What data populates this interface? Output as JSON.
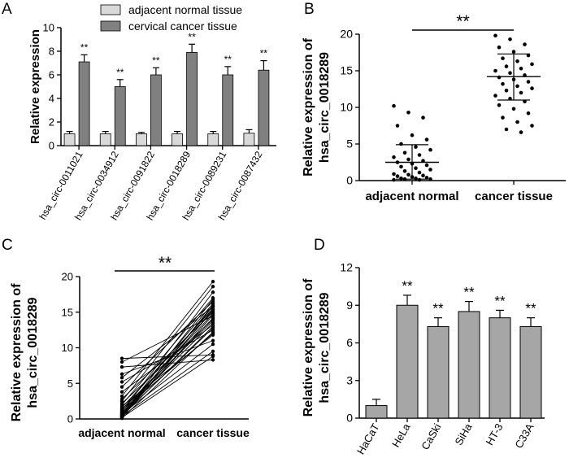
{
  "chart_data": [
    {
      "panel": "A",
      "type": "bar",
      "ylabel": "Relative expression",
      "ylim": [
        0,
        10
      ],
      "yticks": [
        0,
        2,
        4,
        6,
        8,
        10
      ],
      "categories": [
        "hsa_circ-0011021",
        "hsa_circ-0034912",
        "hsa_circ-0091822",
        "hsa_circ-0018289",
        "hsa_circ-0089231",
        "hsa_circ-0087432"
      ],
      "series": [
        {
          "name": "adjacent normal tissue",
          "color": "#d9d9d9",
          "values": [
            1.0,
            1.0,
            1.0,
            1.0,
            1.0,
            1.05
          ],
          "errors": [
            0.2,
            0.2,
            0.12,
            0.2,
            0.2,
            0.3
          ]
        },
        {
          "name": "cervical cancer tissue",
          "color": "#808080",
          "values": [
            7.1,
            5.0,
            6.0,
            7.9,
            6.0,
            6.4
          ],
          "errors": [
            0.6,
            0.6,
            0.6,
            0.7,
            0.7,
            0.8
          ]
        }
      ],
      "annotations": [
        "**",
        "**",
        "**",
        "**",
        "**",
        "**"
      ]
    },
    {
      "panel": "B",
      "type": "scatter",
      "ylabel_lines": [
        "Relative expression of",
        "hsa_circ_0018289"
      ],
      "ylim": [
        0,
        20
      ],
      "yticks": [
        0,
        5,
        10,
        15,
        20
      ],
      "categories": [
        "adjacent normal",
        "cancer tissue"
      ],
      "significance": "**",
      "groups": [
        {
          "name": "adjacent normal",
          "mean": 2.5,
          "sd_upper": 4.9,
          "sd_lower": 0.2,
          "values": [
            10.2,
            9.3,
            8.6,
            7.5,
            6.2,
            5.6,
            5.0,
            4.6,
            4.2,
            3.8,
            3.5,
            3.2,
            2.9,
            2.7,
            2.5,
            2.3,
            2.1,
            1.9,
            1.7,
            1.5,
            1.3,
            1.1,
            0.9,
            0.8,
            0.7,
            0.6,
            0.5,
            0.4,
            0.3,
            0.3,
            0.2,
            0.2,
            0.1,
            0.1
          ]
        },
        {
          "name": "cancer tissue",
          "mean": 14.2,
          "sd_upper": 17.3,
          "sd_lower": 11.0,
          "values": [
            19.8,
            19.3,
            18.6,
            18.2,
            17.6,
            17.1,
            16.7,
            16.3,
            15.9,
            15.6,
            15.3,
            15.0,
            14.7,
            14.4,
            14.1,
            13.8,
            13.5,
            13.2,
            12.9,
            12.6,
            12.3,
            12.0,
            11.6,
            11.2,
            10.8,
            10.3,
            9.8,
            9.2,
            8.6,
            8.0,
            7.5,
            7.0,
            6.6
          ]
        }
      ]
    },
    {
      "panel": "C",
      "type": "line",
      "ylabel_lines": [
        "Relative expression of",
        "hsa_circ_0018289"
      ],
      "ylim": [
        0,
        20
      ],
      "yticks": [
        0,
        5,
        10,
        15,
        20
      ],
      "categories": [
        "adjacent normal",
        "cancer tissue"
      ],
      "significance": "**",
      "pairs": [
        [
          8.5,
          9.0
        ],
        [
          8.0,
          14.5
        ],
        [
          7.3,
          8.3
        ],
        [
          6.3,
          11.0
        ],
        [
          5.8,
          15.8
        ],
        [
          5.2,
          12.5
        ],
        [
          4.5,
          16.5
        ],
        [
          3.8,
          13.2
        ],
        [
          3.2,
          19.3
        ],
        [
          2.8,
          15.0
        ],
        [
          2.5,
          18.6
        ],
        [
          2.2,
          14.0
        ],
        [
          2.0,
          17.0
        ],
        [
          1.8,
          11.8
        ],
        [
          1.6,
          15.5
        ],
        [
          1.4,
          13.8
        ],
        [
          1.3,
          16.2
        ],
        [
          1.2,
          12.0
        ],
        [
          1.1,
          14.8
        ],
        [
          1.0,
          17.8
        ],
        [
          0.9,
          13.5
        ],
        [
          0.8,
          15.2
        ],
        [
          0.7,
          10.5
        ],
        [
          0.6,
          16.8
        ],
        [
          0.6,
          14.2
        ],
        [
          0.5,
          12.8
        ],
        [
          0.5,
          15.8
        ],
        [
          0.4,
          9.5
        ],
        [
          0.4,
          13.0
        ],
        [
          0.3,
          16.0
        ],
        [
          0.3,
          14.6
        ],
        [
          0.2,
          8.8
        ],
        [
          0.2,
          15.4
        ],
        [
          0.1,
          12.2
        ]
      ]
    },
    {
      "panel": "D",
      "type": "bar",
      "ylabel_lines": [
        "Relative expression of",
        "hsa_circ_0018289"
      ],
      "ylim": [
        0,
        12
      ],
      "yticks": [
        0,
        3,
        6,
        9,
        12
      ],
      "categories": [
        "HaCaT",
        "HeLa",
        "CaSki",
        "SiHa",
        "HT-3",
        "C33A"
      ],
      "color": "#a6a6a6",
      "values": [
        1.0,
        9.0,
        7.3,
        8.5,
        8.0,
        7.3
      ],
      "errors": [
        0.5,
        0.8,
        0.7,
        0.8,
        0.6,
        0.7
      ],
      "annotations": [
        "",
        "**",
        "**",
        "**",
        "**",
        "**"
      ]
    }
  ]
}
